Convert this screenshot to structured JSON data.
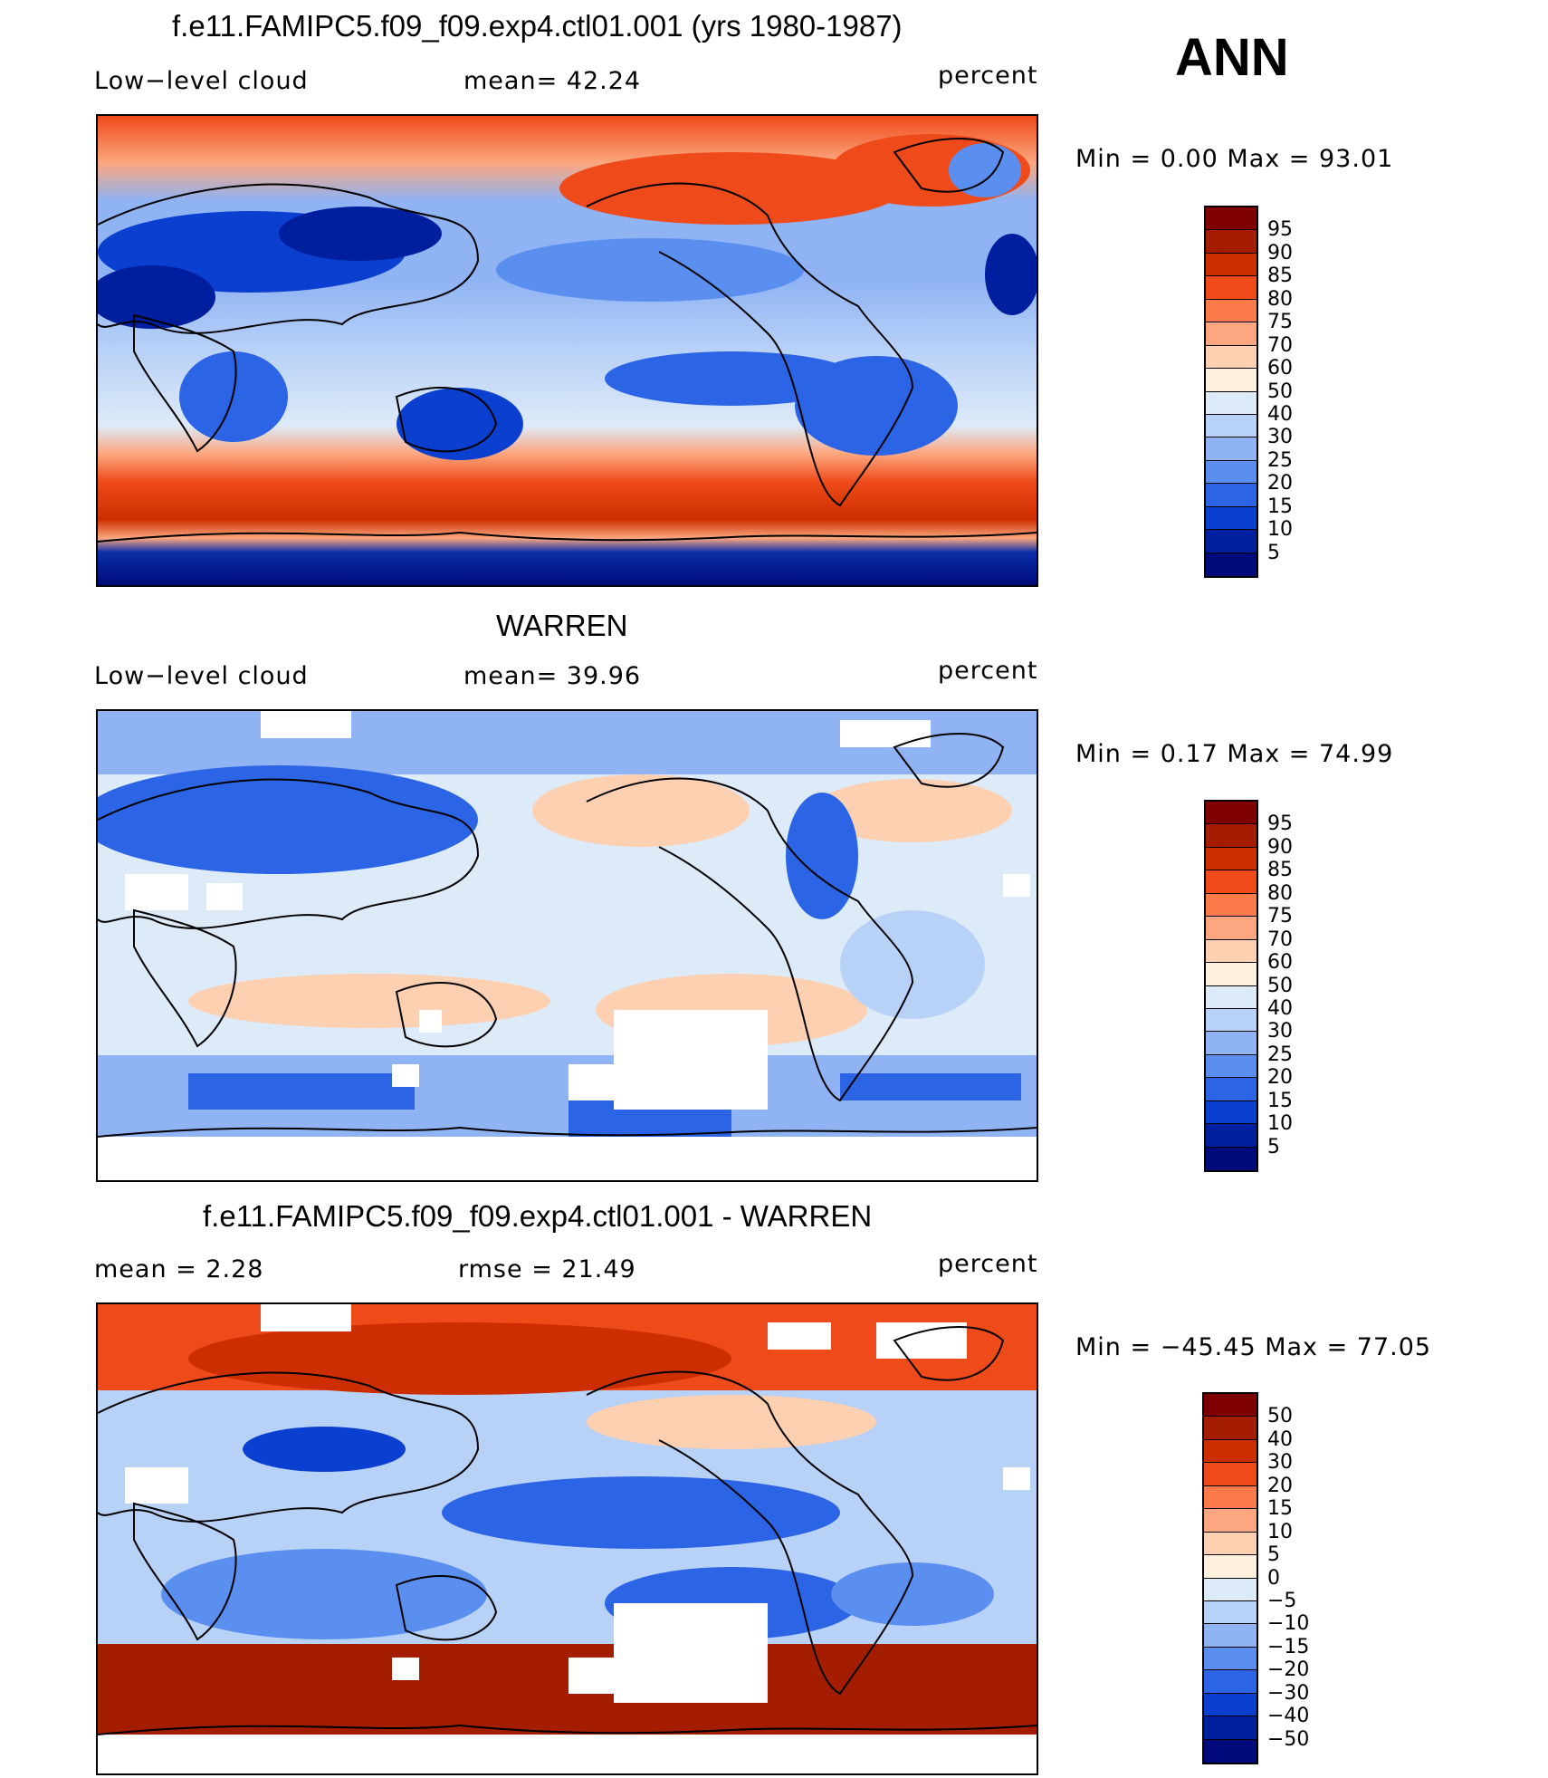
{
  "header": {
    "annual_label": "ANN"
  },
  "panels": [
    {
      "title": "f.e11.FAMIPC5.f09_f09.exp4.ctl01.001 (yrs 1980-1987)",
      "left": "Low−level cloud",
      "mid": "mean=   42.24",
      "right": "percent",
      "minmax": "Min  =      0.00  Max  =     93.01",
      "colorbar": {
        "labels": [
          "95",
          "90",
          "85",
          "80",
          "75",
          "70",
          "60",
          "50",
          "40",
          "30",
          "25",
          "20",
          "15",
          "10",
          "5"
        ],
        "colors": [
          "#7f0000",
          "#a51d00",
          "#cc2e00",
          "#ef4a1a",
          "#fb7a4a",
          "#fca77f",
          "#fdd0b2",
          "#fff0dd",
          "#ddeaf8",
          "#b8d1f7",
          "#8fb3f3",
          "#5a8ff0",
          "#2c64e6",
          "#0a3fd0",
          "#001f9f",
          "#000a7a"
        ]
      },
      "map_colors": {
        "ocean_mid": "#b8d1f7",
        "storm_track": "#ef4a1a",
        "deep_blue": "#0a2fa8",
        "land_line": "#000000"
      }
    },
    {
      "title": "WARREN",
      "left": "Low−level cloud",
      "mid": "mean=   39.96",
      "right": "percent",
      "minmax": "Min  =      0.17  Max  =     74.99",
      "colorbar": {
        "labels": [
          "95",
          "90",
          "85",
          "80",
          "75",
          "70",
          "60",
          "50",
          "40",
          "30",
          "25",
          "20",
          "15",
          "10",
          "5"
        ],
        "colors": [
          "#7f0000",
          "#a51d00",
          "#cc2e00",
          "#ef4a1a",
          "#fb7a4a",
          "#fca77f",
          "#fdd0b2",
          "#fff0dd",
          "#ddeaf8",
          "#b8d1f7",
          "#8fb3f3",
          "#5a8ff0",
          "#2c64e6",
          "#0a3fd0",
          "#001f9f",
          "#000a7a"
        ]
      }
    },
    {
      "title": "f.e11.FAMIPC5.f09_f09.exp4.ctl01.001 - WARREN",
      "left": "mean  =      2.28",
      "mid": "rmse  =    21.49",
      "right": "percent",
      "minmax": "Min  =  −45.45  Max  =     77.05",
      "colorbar": {
        "labels": [
          "50",
          "40",
          "30",
          "20",
          "15",
          "10",
          "5",
          "0",
          "−5",
          "−10",
          "−15",
          "−20",
          "−30",
          "−40",
          "−50"
        ],
        "colors": [
          "#7f0000",
          "#a51d00",
          "#cc2e00",
          "#ef4a1a",
          "#fb7a4a",
          "#fca77f",
          "#fdd0b2",
          "#fff0dd",
          "#ddeaf8",
          "#b8d1f7",
          "#8fb3f3",
          "#5a8ff0",
          "#2c64e6",
          "#0a3fd0",
          "#001f9f",
          "#000a7a"
        ]
      }
    }
  ]
}
